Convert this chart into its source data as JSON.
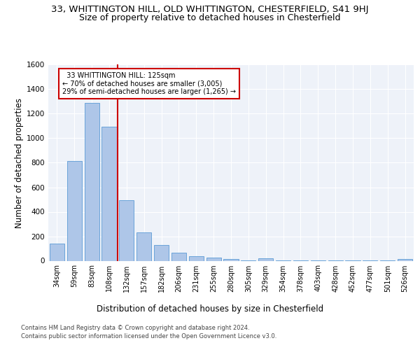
{
  "title_line1": "33, WHITTINGTON HILL, OLD WHITTINGTON, CHESTERFIELD, S41 9HJ",
  "title_line2": "Size of property relative to detached houses in Chesterfield",
  "xlabel": "Distribution of detached houses by size in Chesterfield",
  "ylabel": "Number of detached properties",
  "footer_line1": "Contains HM Land Registry data © Crown copyright and database right 2024.",
  "footer_line2": "Contains public sector information licensed under the Open Government Licence v3.0.",
  "categories": [
    "34sqm",
    "59sqm",
    "83sqm",
    "108sqm",
    "132sqm",
    "157sqm",
    "182sqm",
    "206sqm",
    "231sqm",
    "255sqm",
    "280sqm",
    "305sqm",
    "329sqm",
    "354sqm",
    "378sqm",
    "403sqm",
    "428sqm",
    "452sqm",
    "477sqm",
    "501sqm",
    "526sqm"
  ],
  "values": [
    140,
    815,
    1290,
    1095,
    495,
    230,
    130,
    68,
    38,
    27,
    12,
    5,
    18,
    3,
    3,
    3,
    3,
    3,
    3,
    3,
    12
  ],
  "bar_color": "#aec6e8",
  "bar_edge_color": "#5b9bd5",
  "redline_index": 4,
  "annotation_text": "  33 WHITTINGTON HILL: 125sqm\n← 70% of detached houses are smaller (3,005)\n29% of semi-detached houses are larger (1,265) →",
  "annotation_box_color": "#ffffff",
  "annotation_box_edge": "#cc0000",
  "ylim": [
    0,
    1600
  ],
  "yticks": [
    0,
    200,
    400,
    600,
    800,
    1000,
    1200,
    1400,
    1600
  ],
  "bg_color": "#eef2f9",
  "grid_color": "#ffffff",
  "title1_fontsize": 9.5,
  "title2_fontsize": 9.0,
  "xlabel_fontsize": 8.5,
  "ylabel_fontsize": 8.5,
  "tick_fontsize": 7.5,
  "xtick_fontsize": 7.0,
  "footer_fontsize": 6.0
}
